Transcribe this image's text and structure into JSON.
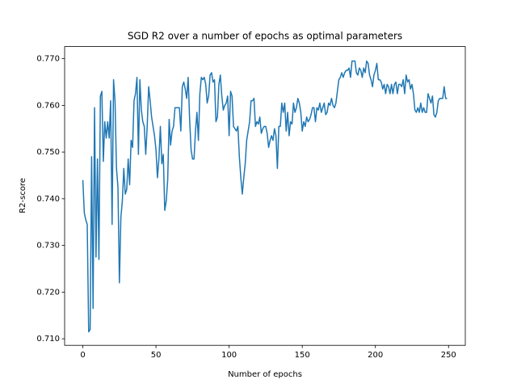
{
  "chart_data": {
    "type": "line",
    "title": "SGD R2 over a number of epochs as optimal parameters",
    "x_label": "Number of epochs",
    "y_label": "R2-score",
    "color": "#1f77b4",
    "grid": false,
    "xlim": [
      -12.45,
      261.45
    ],
    "ylim": [
      0.7086,
      0.7726
    ],
    "xticks": [
      0,
      50,
      100,
      150,
      200,
      250
    ],
    "yticks": [
      {
        "value": 0.71,
        "label": "0.710"
      },
      {
        "value": 0.72,
        "label": "0.720"
      },
      {
        "value": 0.73,
        "label": "0.730"
      },
      {
        "value": 0.74,
        "label": "0.740"
      },
      {
        "value": 0.75,
        "label": "0.750"
      },
      {
        "value": 0.76,
        "label": "0.760"
      },
      {
        "value": 0.77,
        "label": "0.770"
      }
    ],
    "x": [
      0,
      1,
      2,
      3,
      4,
      5,
      6,
      7,
      8,
      9,
      10,
      11,
      12,
      13,
      14,
      15,
      16,
      17,
      18,
      19,
      20,
      21,
      22,
      23,
      24,
      25,
      26,
      27,
      28,
      29,
      30,
      31,
      32,
      33,
      34,
      35,
      36,
      37,
      38,
      39,
      40,
      41,
      42,
      43,
      44,
      45,
      46,
      47,
      48,
      49,
      50,
      51,
      52,
      53,
      54,
      55,
      56,
      57,
      58,
      59,
      60,
      61,
      62,
      63,
      64,
      65,
      66,
      67,
      68,
      69,
      70,
      71,
      72,
      73,
      74,
      75,
      76,
      77,
      78,
      79,
      80,
      81,
      82,
      83,
      84,
      85,
      86,
      87,
      88,
      89,
      90,
      91,
      92,
      93,
      94,
      95,
      96,
      97,
      98,
      99,
      100,
      101,
      102,
      103,
      104,
      105,
      106,
      107,
      108,
      109,
      110,
      111,
      112,
      113,
      114,
      115,
      116,
      117,
      118,
      119,
      120,
      121,
      122,
      123,
      124,
      125,
      126,
      127,
      128,
      129,
      130,
      131,
      132,
      133,
      134,
      135,
      136,
      137,
      138,
      139,
      140,
      141,
      142,
      143,
      144,
      145,
      146,
      147,
      148,
      149,
      150,
      151,
      152,
      153,
      154,
      155,
      156,
      157,
      158,
      159,
      160,
      161,
      162,
      163,
      164,
      165,
      166,
      167,
      168,
      169,
      170,
      171,
      172,
      173,
      174,
      175,
      176,
      177,
      178,
      179,
      180,
      181,
      182,
      183,
      184,
      185,
      186,
      187,
      188,
      189,
      190,
      191,
      192,
      193,
      194,
      195,
      196,
      197,
      198,
      199,
      200,
      201,
      202,
      203,
      204,
      205,
      206,
      207,
      208,
      209,
      210,
      211,
      212,
      213,
      214,
      215,
      216,
      217,
      218,
      219,
      220,
      221,
      222,
      223,
      224,
      225,
      226,
      227,
      228,
      229,
      230,
      231,
      232,
      233,
      234,
      235,
      236,
      237,
      238,
      239,
      240,
      241,
      242,
      243,
      244,
      245,
      246,
      247,
      248,
      249
    ],
    "values": [
      0.744,
      0.737,
      0.7355,
      0.7345,
      0.7115,
      0.712,
      0.749,
      0.7165,
      0.7595,
      0.7275,
      0.7485,
      0.727,
      0.762,
      0.763,
      0.748,
      0.7565,
      0.753,
      0.7565,
      0.753,
      0.761,
      0.7345,
      0.7655,
      0.761,
      0.7465,
      0.7425,
      0.722,
      0.736,
      0.7395,
      0.7465,
      0.741,
      0.742,
      0.7485,
      0.743,
      0.7525,
      0.751,
      0.761,
      0.7625,
      0.766,
      0.7495,
      0.7655,
      0.759,
      0.7565,
      0.7555,
      0.7495,
      0.7555,
      0.764,
      0.761,
      0.7575,
      0.7555,
      0.7535,
      0.7505,
      0.7445,
      0.7485,
      0.7555,
      0.7475,
      0.7495,
      0.7375,
      0.7395,
      0.744,
      0.757,
      0.7515,
      0.7545,
      0.7555,
      0.7595,
      0.7595,
      0.7595,
      0.7595,
      0.7545,
      0.764,
      0.765,
      0.7635,
      0.7615,
      0.766,
      0.757,
      0.7505,
      0.7485,
      0.7485,
      0.7545,
      0.7585,
      0.7525,
      0.7625,
      0.766,
      0.7655,
      0.766,
      0.7645,
      0.7605,
      0.762,
      0.7665,
      0.767,
      0.765,
      0.7655,
      0.7565,
      0.7575,
      0.7645,
      0.7665,
      0.762,
      0.759,
      0.76,
      0.7605,
      0.762,
      0.7535,
      0.763,
      0.762,
      0.7555,
      0.755,
      0.7545,
      0.7555,
      0.749,
      0.7445,
      0.741,
      0.7445,
      0.7475,
      0.7525,
      0.7545,
      0.7565,
      0.761,
      0.761,
      0.7615,
      0.7555,
      0.7565,
      0.756,
      0.7575,
      0.754,
      0.755,
      0.7555,
      0.7555,
      0.754,
      0.751,
      0.7525,
      0.7535,
      0.7525,
      0.755,
      0.7535,
      0.7465,
      0.7555,
      0.7555,
      0.7605,
      0.7585,
      0.7605,
      0.7545,
      0.7585,
      0.7535,
      0.7565,
      0.756,
      0.7605,
      0.7585,
      0.7595,
      0.7615,
      0.7605,
      0.7585,
      0.7545,
      0.7565,
      0.7555,
      0.7575,
      0.7565,
      0.757,
      0.758,
      0.7595,
      0.7595,
      0.7565,
      0.7595,
      0.759,
      0.7605,
      0.7585,
      0.7595,
      0.7605,
      0.758,
      0.7585,
      0.7605,
      0.76,
      0.7615,
      0.76,
      0.7595,
      0.7605,
      0.763,
      0.7655,
      0.766,
      0.767,
      0.766,
      0.767,
      0.7675,
      0.7675,
      0.768,
      0.766,
      0.7695,
      0.7695,
      0.7695,
      0.767,
      0.7665,
      0.768,
      0.7675,
      0.766,
      0.768,
      0.767,
      0.7695,
      0.769,
      0.7665,
      0.7655,
      0.764,
      0.7665,
      0.7675,
      0.769,
      0.7655,
      0.7655,
      0.765,
      0.7635,
      0.7645,
      0.7625,
      0.7645,
      0.764,
      0.7625,
      0.7645,
      0.7625,
      0.7645,
      0.765,
      0.7625,
      0.7645,
      0.7645,
      0.764,
      0.7655,
      0.7625,
      0.7665,
      0.765,
      0.7655,
      0.7635,
      0.7645,
      0.7625,
      0.759,
      0.7585,
      0.7595,
      0.7585,
      0.7605,
      0.7585,
      0.7595,
      0.7585,
      0.7585,
      0.7625,
      0.7615,
      0.7605,
      0.762,
      0.758,
      0.7575,
      0.7585,
      0.761,
      0.7615,
      0.7615,
      0.7615,
      0.764,
      0.7615,
      0.7615
    ]
  }
}
